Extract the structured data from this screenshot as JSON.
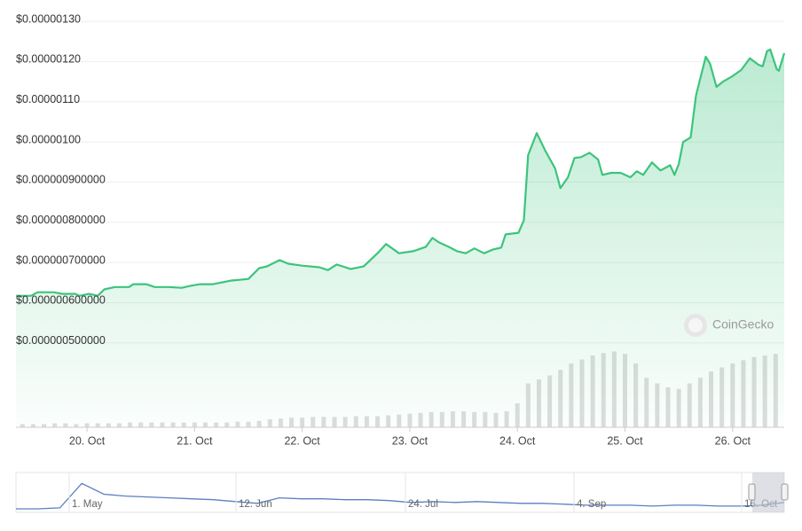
{
  "chart_data": {
    "type": "line",
    "watermark": "CoinGecko",
    "x": [
      19.34,
      19.48,
      19.54,
      19.69,
      19.77,
      19.89,
      19.93,
      20.02,
      20.1,
      20.16,
      20.26,
      20.39,
      20.43,
      20.55,
      20.63,
      20.76,
      20.88,
      20.96,
      21.05,
      21.17,
      21.34,
      21.5,
      21.6,
      21.67,
      21.79,
      21.87,
      22.0,
      22.16,
      22.24,
      22.32,
      22.45,
      22.57,
      22.7,
      22.78,
      22.9,
      23.03,
      23.15,
      23.21,
      23.27,
      23.36,
      23.44,
      23.52,
      23.6,
      23.69,
      23.77,
      23.85,
      23.89,
      24.01,
      24.06,
      24.1,
      24.18,
      24.26,
      24.35,
      24.4,
      24.47,
      24.53,
      24.59,
      24.67,
      24.75,
      24.79,
      24.87,
      24.96,
      25.05,
      25.11,
      25.17,
      25.25,
      25.33,
      25.42,
      25.46,
      25.5,
      25.54,
      25.61,
      25.66,
      25.75,
      25.79,
      25.85,
      25.91,
      25.99,
      26.08,
      26.16,
      26.24,
      26.28,
      26.32,
      26.35,
      26.41,
      26.43,
      26.48
    ],
    "series": [
      {
        "color": "#3cc47c",
        "values": [
          6.17e-07,
          6.17e-07,
          6.26e-07,
          6.26e-07,
          6.22e-07,
          6.22e-07,
          6.17e-07,
          6.22e-07,
          6.17e-07,
          6.33e-07,
          6.39e-07,
          6.39e-07,
          6.46e-07,
          6.46e-07,
          6.39e-07,
          6.39e-07,
          6.37e-07,
          6.42e-07,
          6.46e-07,
          6.46e-07,
          6.55e-07,
          6.59e-07,
          6.86e-07,
          6.9e-07,
          7.06e-07,
          6.97e-07,
          6.92e-07,
          6.88e-07,
          6.81e-07,
          6.95e-07,
          6.84e-07,
          6.9e-07,
          7.23e-07,
          7.46e-07,
          7.23e-07,
          7.28e-07,
          7.39e-07,
          7.61e-07,
          7.5e-07,
          7.39e-07,
          7.28e-07,
          7.23e-07,
          7.35e-07,
          7.23e-07,
          7.32e-07,
          7.37e-07,
          7.7e-07,
          7.74e-07,
          8.05e-07,
          9.67e-07,
          1.022e-06,
          9.78e-07,
          9.34e-07,
          8.85e-07,
          9.12e-07,
          9.6e-07,
          9.62e-07,
          9.73e-07,
          9.56e-07,
          9.18e-07,
          9.23e-07,
          9.23e-07,
          9.12e-07,
          9.27e-07,
          9.18e-07,
          9.49e-07,
          9.29e-07,
          9.42e-07,
          9.18e-07,
          9.45e-07,
          1e-06,
          1.011e-06,
          1.115e-06,
          1.212e-06,
          1.195e-06,
          1.137e-06,
          1.15e-06,
          1.162e-06,
          1.179e-06,
          1.208e-06,
          1.192e-06,
          1.188e-06,
          1.226e-06,
          1.23e-06,
          1.181e-06,
          1.177e-06,
          1.221e-06
        ]
      }
    ],
    "volume": {
      "color": "#dddddd",
      "axis": "y2",
      "x": [
        19.4,
        19.5,
        19.6,
        19.7,
        19.8,
        19.9,
        20.0,
        20.1,
        20.2,
        20.3,
        20.4,
        20.5,
        20.6,
        20.7,
        20.8,
        20.9,
        21.0,
        21.1,
        21.2,
        21.3,
        21.4,
        21.5,
        21.6,
        21.7,
        21.8,
        21.9,
        22.0,
        22.1,
        22.2,
        22.3,
        22.4,
        22.5,
        22.6,
        22.7,
        22.8,
        22.9,
        23.0,
        23.1,
        23.2,
        23.3,
        23.4,
        23.5,
        23.6,
        23.7,
        23.8,
        23.9,
        24.0,
        24.1,
        24.2,
        24.3,
        24.4,
        24.5,
        24.6,
        24.7,
        24.8,
        24.9,
        25.0,
        25.1,
        25.2,
        25.3,
        25.4,
        25.5,
        25.6,
        25.7,
        25.8,
        25.9,
        26.0,
        26.1,
        26.2,
        26.3,
        26.4
      ],
      "values": [
        4,
        4,
        4,
        5,
        5,
        4,
        5,
        5,
        5,
        5,
        6,
        6,
        6,
        6,
        6,
        6,
        6,
        6,
        6,
        6,
        7,
        7,
        8,
        10,
        11,
        12,
        12,
        13,
        13,
        13,
        13,
        14,
        14,
        14,
        15,
        16,
        17,
        18,
        19,
        19,
        20,
        20,
        19,
        19,
        18,
        20,
        30,
        55,
        60,
        65,
        72,
        80,
        85,
        90,
        93,
        95,
        92,
        80,
        62,
        55,
        50,
        48,
        55,
        62,
        70,
        75,
        80,
        84,
        88,
        90,
        92
      ]
    },
    "xlim": [
      19.34,
      26.48
    ],
    "xticks": [
      {
        "value": 20,
        "label": "20. Oct"
      },
      {
        "value": 21,
        "label": "21. Oct"
      },
      {
        "value": 22,
        "label": "22. Oct"
      },
      {
        "value": 23,
        "label": "23. Oct"
      },
      {
        "value": 24,
        "label": "24. Oct"
      },
      {
        "value": 25,
        "label": "25. Oct"
      },
      {
        "value": 26,
        "label": "26. Oct"
      }
    ],
    "ylim": [
      2.9e-07,
      1.32e-06
    ],
    "yticks": [
      {
        "value": 5e-07,
        "label": "$0.000000500000"
      },
      {
        "value": 6e-07,
        "label": "$0.000000600000"
      },
      {
        "value": 7e-07,
        "label": "$0.000000700000"
      },
      {
        "value": 8e-07,
        "label": "$0.000000800000"
      },
      {
        "value": 9e-07,
        "label": "$0.000000900000"
      },
      {
        "value": 1e-06,
        "label": "$0.00000100"
      },
      {
        "value": 1.1e-06,
        "label": "$0.00000110"
      },
      {
        "value": 1.2e-06,
        "label": "$0.00000120"
      },
      {
        "value": 1.3e-06,
        "label": "$0.00000130"
      }
    ],
    "y2lim": [
      0,
      100
    ],
    "grid": true,
    "navigator": {
      "color": "#5b7fbf",
      "ylim": [
        0,
        40
      ],
      "values": [
        2,
        2,
        3,
        30,
        18,
        16,
        15,
        14,
        13,
        12,
        10,
        8,
        14,
        13,
        13,
        12,
        12,
        11,
        9,
        10,
        9,
        10,
        9,
        8,
        8,
        7,
        6,
        6,
        6,
        5,
        6,
        6,
        5,
        5,
        6,
        9
      ],
      "labels": [
        "1. May",
        "12. Jun",
        "24. Jul",
        "4. Sep",
        "16. Oct"
      ]
    }
  }
}
